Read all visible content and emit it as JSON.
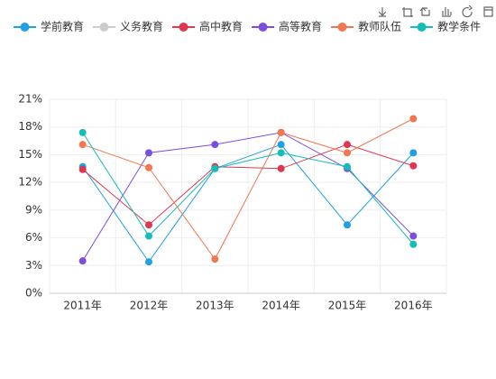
{
  "chart_data": {
    "type": "line",
    "categories": [
      "2011年",
      "2012年",
      "2013年",
      "2014年",
      "2015年",
      "2016年"
    ],
    "series": [
      {
        "name": "学前教育",
        "color": "#1e9fe6",
        "values": [
          13.7,
          3.4,
          13.5,
          16.1,
          7.4,
          15.2
        ]
      },
      {
        "name": "义务教育",
        "color": "#cccccc",
        "values": [
          null,
          null,
          null,
          null,
          null,
          null
        ],
        "selected": false
      },
      {
        "name": "高中教育",
        "color": "#e0364f",
        "values": [
          13.4,
          7.4,
          13.7,
          13.5,
          16.1,
          13.8
        ]
      },
      {
        "name": "高等教育",
        "color": "#7b4ee0",
        "values": [
          3.5,
          15.2,
          16.1,
          17.4,
          13.5,
          6.2
        ]
      },
      {
        "name": "教师队伍",
        "color": "#f0774f",
        "values": [
          16.1,
          13.6,
          3.7,
          17.4,
          15.2,
          18.9
        ]
      },
      {
        "name": "教学条件",
        "color": "#14bdb8",
        "values": [
          17.4,
          6.2,
          13.5,
          15.2,
          13.7,
          5.3
        ]
      }
    ],
    "ylim": [
      0,
      21
    ],
    "yticks": [
      {
        "value": 0,
        "label": "0%"
      },
      {
        "value": 3,
        "label": "3%"
      },
      {
        "value": 6,
        "label": "6%"
      },
      {
        "value": 9,
        "label": "9%"
      },
      {
        "value": 12,
        "label": "12%"
      },
      {
        "value": 15,
        "label": "15%"
      },
      {
        "value": 18,
        "label": "18%"
      },
      {
        "value": 21,
        "label": "21%"
      }
    ],
    "grid": true,
    "legend": "top"
  }
}
